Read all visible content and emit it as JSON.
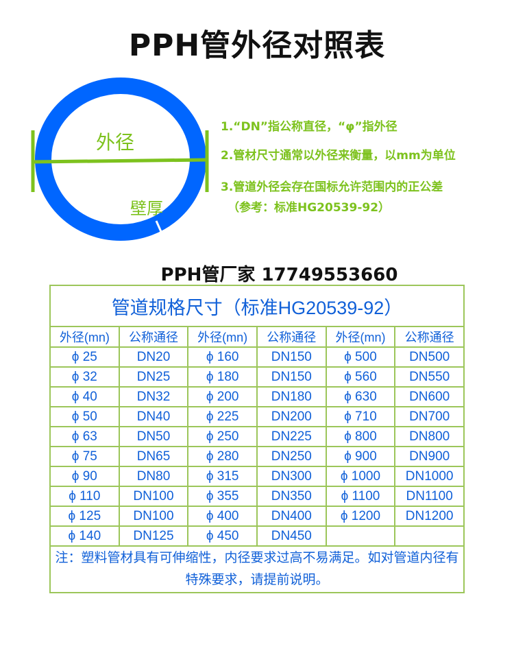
{
  "title": "PPH管外径对照表",
  "diagram": {
    "outer_label": "外径",
    "wall_label": "壁厚",
    "ring_color": "#0066ff",
    "accent_color": "#7dc21e"
  },
  "notes": [
    "1.“DN”指公称直径，“φ”指外径",
    "2.管材尺寸通常以外径来衡量，以mm为单位",
    "3.管道外径会存在国标允许范围内的正公差",
    "（参考：标准HG20539-92）"
  ],
  "manufacturer": "PPH管厂家 17749553660",
  "table": {
    "caption": "管道规格尺寸（标准HG20539-92）",
    "headers": [
      "外径(mn)",
      "公称通径",
      "外径(mn)",
      "公称通径",
      "外径(mn)",
      "公称通径"
    ],
    "rows": [
      [
        "ϕ 25",
        "DN20",
        "ϕ 160",
        "DN150",
        "ϕ 500",
        "DN500"
      ],
      [
        "ϕ 32",
        "DN25",
        "ϕ 180",
        "DN150",
        "ϕ 560",
        "DN550"
      ],
      [
        "ϕ 40",
        "DN32",
        "ϕ 200",
        "DN180",
        "ϕ 630",
        "DN600"
      ],
      [
        "ϕ 50",
        "DN40",
        "ϕ 225",
        "DN200",
        "ϕ 710",
        "DN700"
      ],
      [
        "ϕ 63",
        "DN50",
        "ϕ 250",
        "DN225",
        "ϕ 800",
        "DN800"
      ],
      [
        "ϕ 75",
        "DN65",
        "ϕ 280",
        "DN250",
        "ϕ 900",
        "DN900"
      ],
      [
        "ϕ 90",
        "DN80",
        "ϕ 315",
        "DN300",
        "ϕ 1000",
        "DN1000"
      ],
      [
        "ϕ 110",
        "DN100",
        "ϕ 355",
        "DN350",
        "ϕ 1100",
        "DN1100"
      ],
      [
        "ϕ 125",
        "DN100",
        "ϕ 400",
        "DN400",
        "ϕ 1200",
        "DN1200"
      ],
      [
        "ϕ 140",
        "DN125",
        "ϕ 450",
        "DN450",
        "",
        ""
      ]
    ],
    "note": "注：塑料管材具有可伸缩性，内径要求过高不易满足。如对管道内径有特殊要求，请提前说明。",
    "text_color": "#1060d8",
    "border_color": "#9cc65a"
  }
}
